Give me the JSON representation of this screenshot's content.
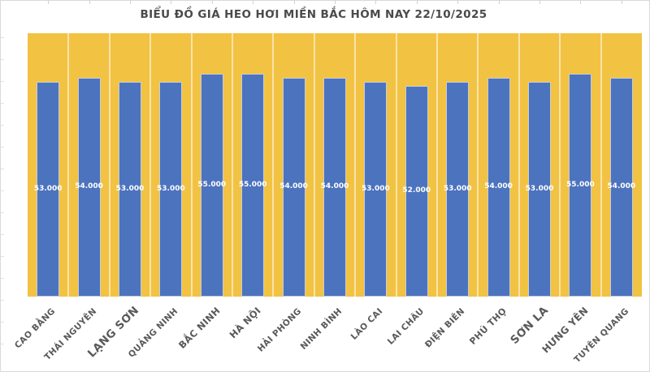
{
  "chart_data": {
    "type": "bar",
    "title": "BIỂU ĐỒ GIÁ HEO HƠI MIỀN BẮC HÔM NAY 22/10/2025",
    "categories": [
      "CAO BẰNG",
      "THÁI NGUYÊN",
      "LẠNG SƠN",
      "QUẢNG NINH",
      "BẮC NINH",
      "HÀ NỘI",
      "HẢI PHÒNG",
      "NINH BÌNH",
      "LÀO CAI",
      "LAI CHÂU",
      "ĐIỆN BIÊN",
      "PHÚ THỌ",
      "SƠN LA",
      "HƯNG YÊN",
      "TUYÊN QUANG"
    ],
    "values": [
      53000,
      54000,
      53000,
      53000,
      55000,
      55000,
      54000,
      54000,
      53000,
      52000,
      53000,
      54000,
      53000,
      55000,
      54000
    ],
    "value_labels": [
      "53.000",
      "54.000",
      "53.000",
      "53.000",
      "55.000",
      "55.000",
      "54.000",
      "54.000",
      "53.000",
      "52.000",
      "53.000",
      "54.000",
      "53.000",
      "55.000",
      "54.000"
    ],
    "xlabel": "",
    "ylabel": "",
    "ylim": [
      0,
      65000
    ],
    "legend": "none",
    "grid": "vertical-column-separators",
    "colors": {
      "bar": "#4C73BE",
      "bar_border": "#C7CDDA",
      "plot_background": "#F2C242",
      "gridline": "rgba(255,255,255,0.55)",
      "value_label": "#FFFFFF",
      "category_label": "#595959",
      "title": "#4A4A4A"
    },
    "category_label_font_px": [
      10.5,
      10.5,
      13.5,
      10.5,
      11.5,
      11.5,
      10.5,
      10.5,
      10.5,
      10.5,
      10.5,
      11,
      13.5,
      12,
      10.5
    ]
  }
}
